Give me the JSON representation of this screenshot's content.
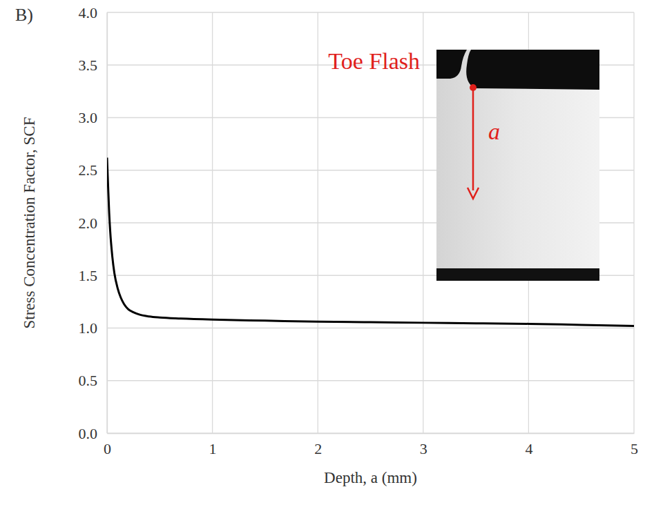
{
  "chart_data": {
    "type": "line",
    "panel_label": "B)",
    "x_label": "Depth, a (mm)",
    "y_label": "Stress Concentration Factor, SCF",
    "annotations": [
      "Toe Flash",
      "a"
    ],
    "x": [
      0,
      0.01,
      0.02,
      0.03,
      0.05,
      0.07,
      0.1,
      0.13,
      0.16,
      0.2,
      0.25,
      0.3,
      0.4,
      0.5,
      0.7,
      1,
      1.5,
      2,
      2.5,
      3,
      3.5,
      4,
      4.5,
      5
    ],
    "values": [
      2.62,
      2.35,
      2.1,
      1.92,
      1.68,
      1.52,
      1.38,
      1.29,
      1.23,
      1.18,
      1.15,
      1.13,
      1.11,
      1.1,
      1.09,
      1.08,
      1.07,
      1.06,
      1.055,
      1.05,
      1.045,
      1.04,
      1.03,
      1.02
    ],
    "color": "#000000",
    "xlim": [
      0,
      5
    ],
    "xticks": [
      0,
      1,
      2,
      3,
      4,
      5
    ],
    "ylim": [
      0,
      4
    ],
    "yticks": [
      {
        "value": 0,
        "label": "0.0"
      },
      0.5,
      {
        "value": 1,
        "label": "1.0"
      },
      1.5,
      {
        "value": 2,
        "label": "2.0"
      },
      2.5,
      {
        "value": 3,
        "label": "3.0"
      },
      3.5,
      {
        "value": 4,
        "label": "4.0"
      }
    ],
    "grid": true
  }
}
